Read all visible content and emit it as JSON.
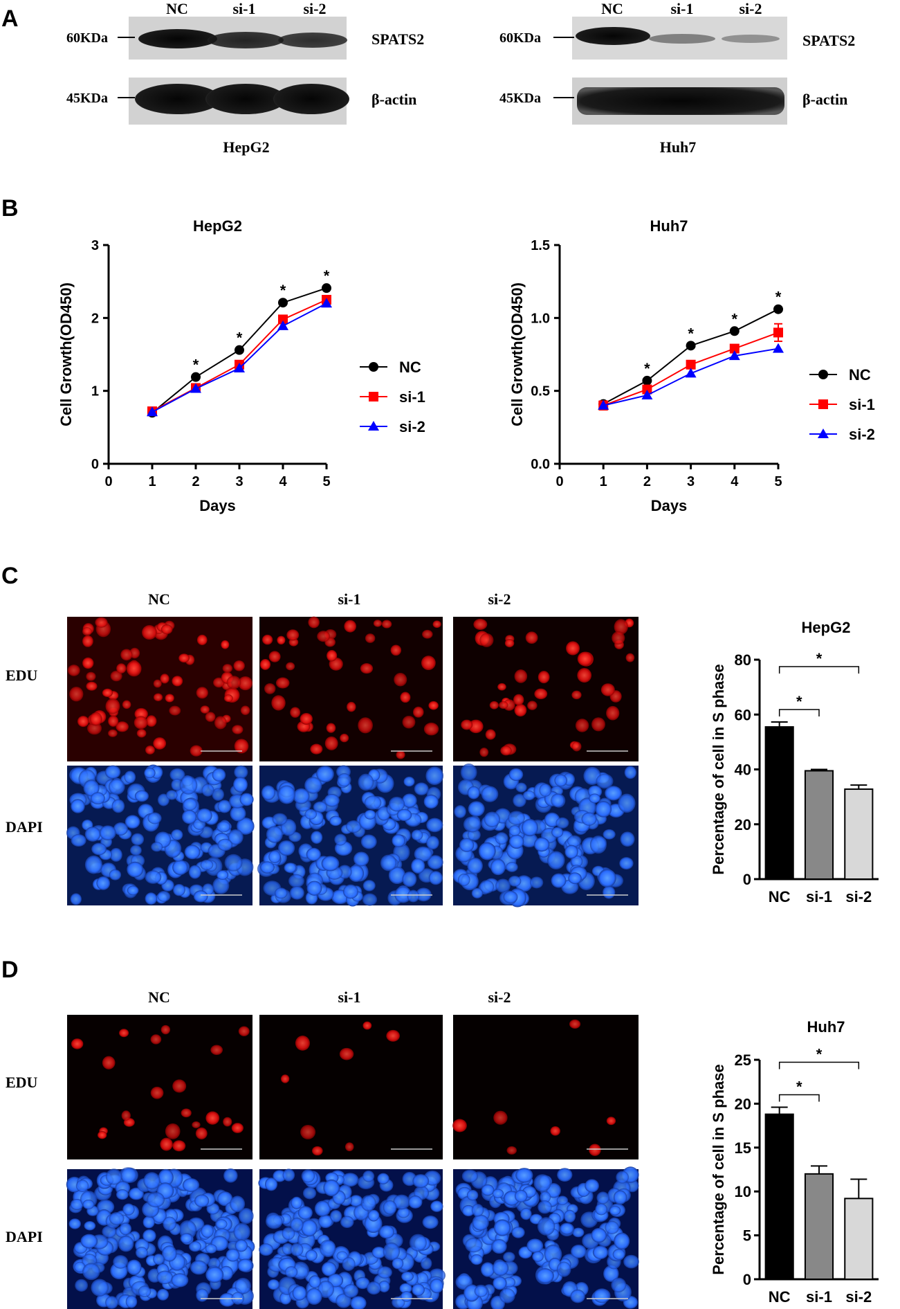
{
  "panel_labels": [
    "A",
    "B",
    "C",
    "D"
  ],
  "panel_a": {
    "blots": [
      {
        "cell_line": "HepG2",
        "lanes": [
          "NC",
          "si-1",
          "si-2"
        ],
        "rows": [
          {
            "marker": "60KDa",
            "protein": "SPATS2",
            "intensity": [
              0.95,
              0.8,
              0.7
            ]
          },
          {
            "marker": "45KDa",
            "protein": "β-actin",
            "intensity": [
              1.0,
              1.0,
              1.0
            ]
          }
        ]
      },
      {
        "cell_line": "Huh7",
        "lanes": [
          "NC",
          "si-1",
          "si-2"
        ],
        "rows": [
          {
            "marker": "60KDa",
            "protein": "SPATS2",
            "intensity": [
              0.95,
              0.45,
              0.35
            ]
          },
          {
            "marker": "45KDa",
            "protein": "β-actin",
            "intensity": [
              1.0,
              1.0,
              1.0
            ]
          }
        ]
      }
    ]
  },
  "panel_c": {
    "conditions": [
      "NC",
      "si-1",
      "si-2"
    ],
    "stains": [
      "EDU",
      "DAPI"
    ],
    "scale_bar": "100 μm",
    "edu_colour": "#e01010",
    "dapi_colour": "#2a6cff"
  },
  "panel_d": {
    "conditions": [
      "NC",
      "si-1",
      "si-2"
    ],
    "stains": [
      "EDU",
      "DAPI"
    ],
    "scale_bar": "100 μm",
    "edu_colour": "#e01010",
    "dapi_colour": "#2a6cff"
  },
  "chart_data": [
    {
      "type": "line",
      "title": "HepG2",
      "xlabel": "Days",
      "ylabel": "Cell Growth(OD450)",
      "xlim": [
        0,
        5
      ],
      "ylim": [
        0,
        3
      ],
      "xticks": [
        0,
        1,
        2,
        3,
        4,
        5
      ],
      "yticks": [
        0,
        1,
        2,
        3
      ],
      "ytick_labels": [
        "0",
        "1",
        "2",
        "3"
      ],
      "x": [
        1,
        2,
        3,
        4,
        5
      ],
      "series": [
        {
          "name": "NC",
          "values": [
            0.7,
            1.19,
            1.56,
            2.21,
            2.41
          ],
          "color": "#000000",
          "marker": "circle"
        },
        {
          "name": "si-1",
          "values": [
            0.72,
            1.04,
            1.36,
            1.98,
            2.25
          ],
          "color": "#ff0000",
          "marker": "square"
        },
        {
          "name": "si-2",
          "values": [
            0.71,
            1.03,
            1.31,
            1.89,
            2.2
          ],
          "color": "#0000ff",
          "marker": "triangle"
        }
      ],
      "significance": [
        2,
        3,
        4,
        5
      ],
      "significance_mark": "*",
      "legend": "right"
    },
    {
      "type": "line",
      "title": "Huh7",
      "xlabel": "Days",
      "ylabel": "Cell Growth(OD450)",
      "xlim": [
        0,
        5
      ],
      "ylim": [
        0,
        1.5
      ],
      "xticks": [
        0,
        1,
        2,
        3,
        4,
        5
      ],
      "yticks": [
        0,
        0.5,
        1.0,
        1.5
      ],
      "ytick_labels": [
        "0.0",
        "0.5",
        "1.0",
        "1.5"
      ],
      "x": [
        1,
        2,
        3,
        4,
        5
      ],
      "series": [
        {
          "name": "NC",
          "values": [
            0.41,
            0.57,
            0.81,
            0.91,
            1.06
          ],
          "color": "#000000",
          "marker": "circle"
        },
        {
          "name": "si-1",
          "values": [
            0.4,
            0.51,
            0.68,
            0.79,
            0.9
          ],
          "errors": [
            0.03,
            0.02,
            0.02,
            0.02,
            0.06
          ],
          "color": "#ff0000",
          "marker": "square"
        },
        {
          "name": "si-2",
          "values": [
            0.4,
            0.47,
            0.62,
            0.74,
            0.79
          ],
          "color": "#0000ff",
          "marker": "triangle"
        }
      ],
      "significance": [
        2,
        3,
        4,
        5
      ],
      "significance_mark": "*",
      "legend": "right"
    },
    {
      "type": "bar",
      "title": "HepG2",
      "categories": [
        "NC",
        "si-1",
        "si-2"
      ],
      "values": [
        55.5,
        39.5,
        32.8
      ],
      "errors": [
        1.8,
        0.5,
        1.5
      ],
      "colors": [
        "#000000",
        "#888888",
        "#d8d8d8"
      ],
      "xlabel": "",
      "ylabel": "Percentage of cell in S phase",
      "ylim": [
        0,
        80
      ],
      "yticks": [
        0,
        20,
        40,
        60,
        80
      ],
      "comparisons": [
        {
          "from": "NC",
          "to": "si-1",
          "label": "*"
        },
        {
          "from": "NC",
          "to": "si-2",
          "label": "*"
        }
      ]
    },
    {
      "type": "bar",
      "title": "Huh7",
      "categories": [
        "NC",
        "si-1",
        "si-2"
      ],
      "values": [
        18.8,
        12.0,
        9.2
      ],
      "errors": [
        0.8,
        0.9,
        2.2
      ],
      "colors": [
        "#000000",
        "#888888",
        "#d8d8d8"
      ],
      "xlabel": "",
      "ylabel": "Percentage of cell in S phase",
      "ylim": [
        0,
        25
      ],
      "yticks": [
        0,
        5,
        10,
        15,
        20,
        25
      ],
      "comparisons": [
        {
          "from": "NC",
          "to": "si-1",
          "label": "*"
        },
        {
          "from": "NC",
          "to": "si-2",
          "label": "*"
        }
      ]
    }
  ]
}
